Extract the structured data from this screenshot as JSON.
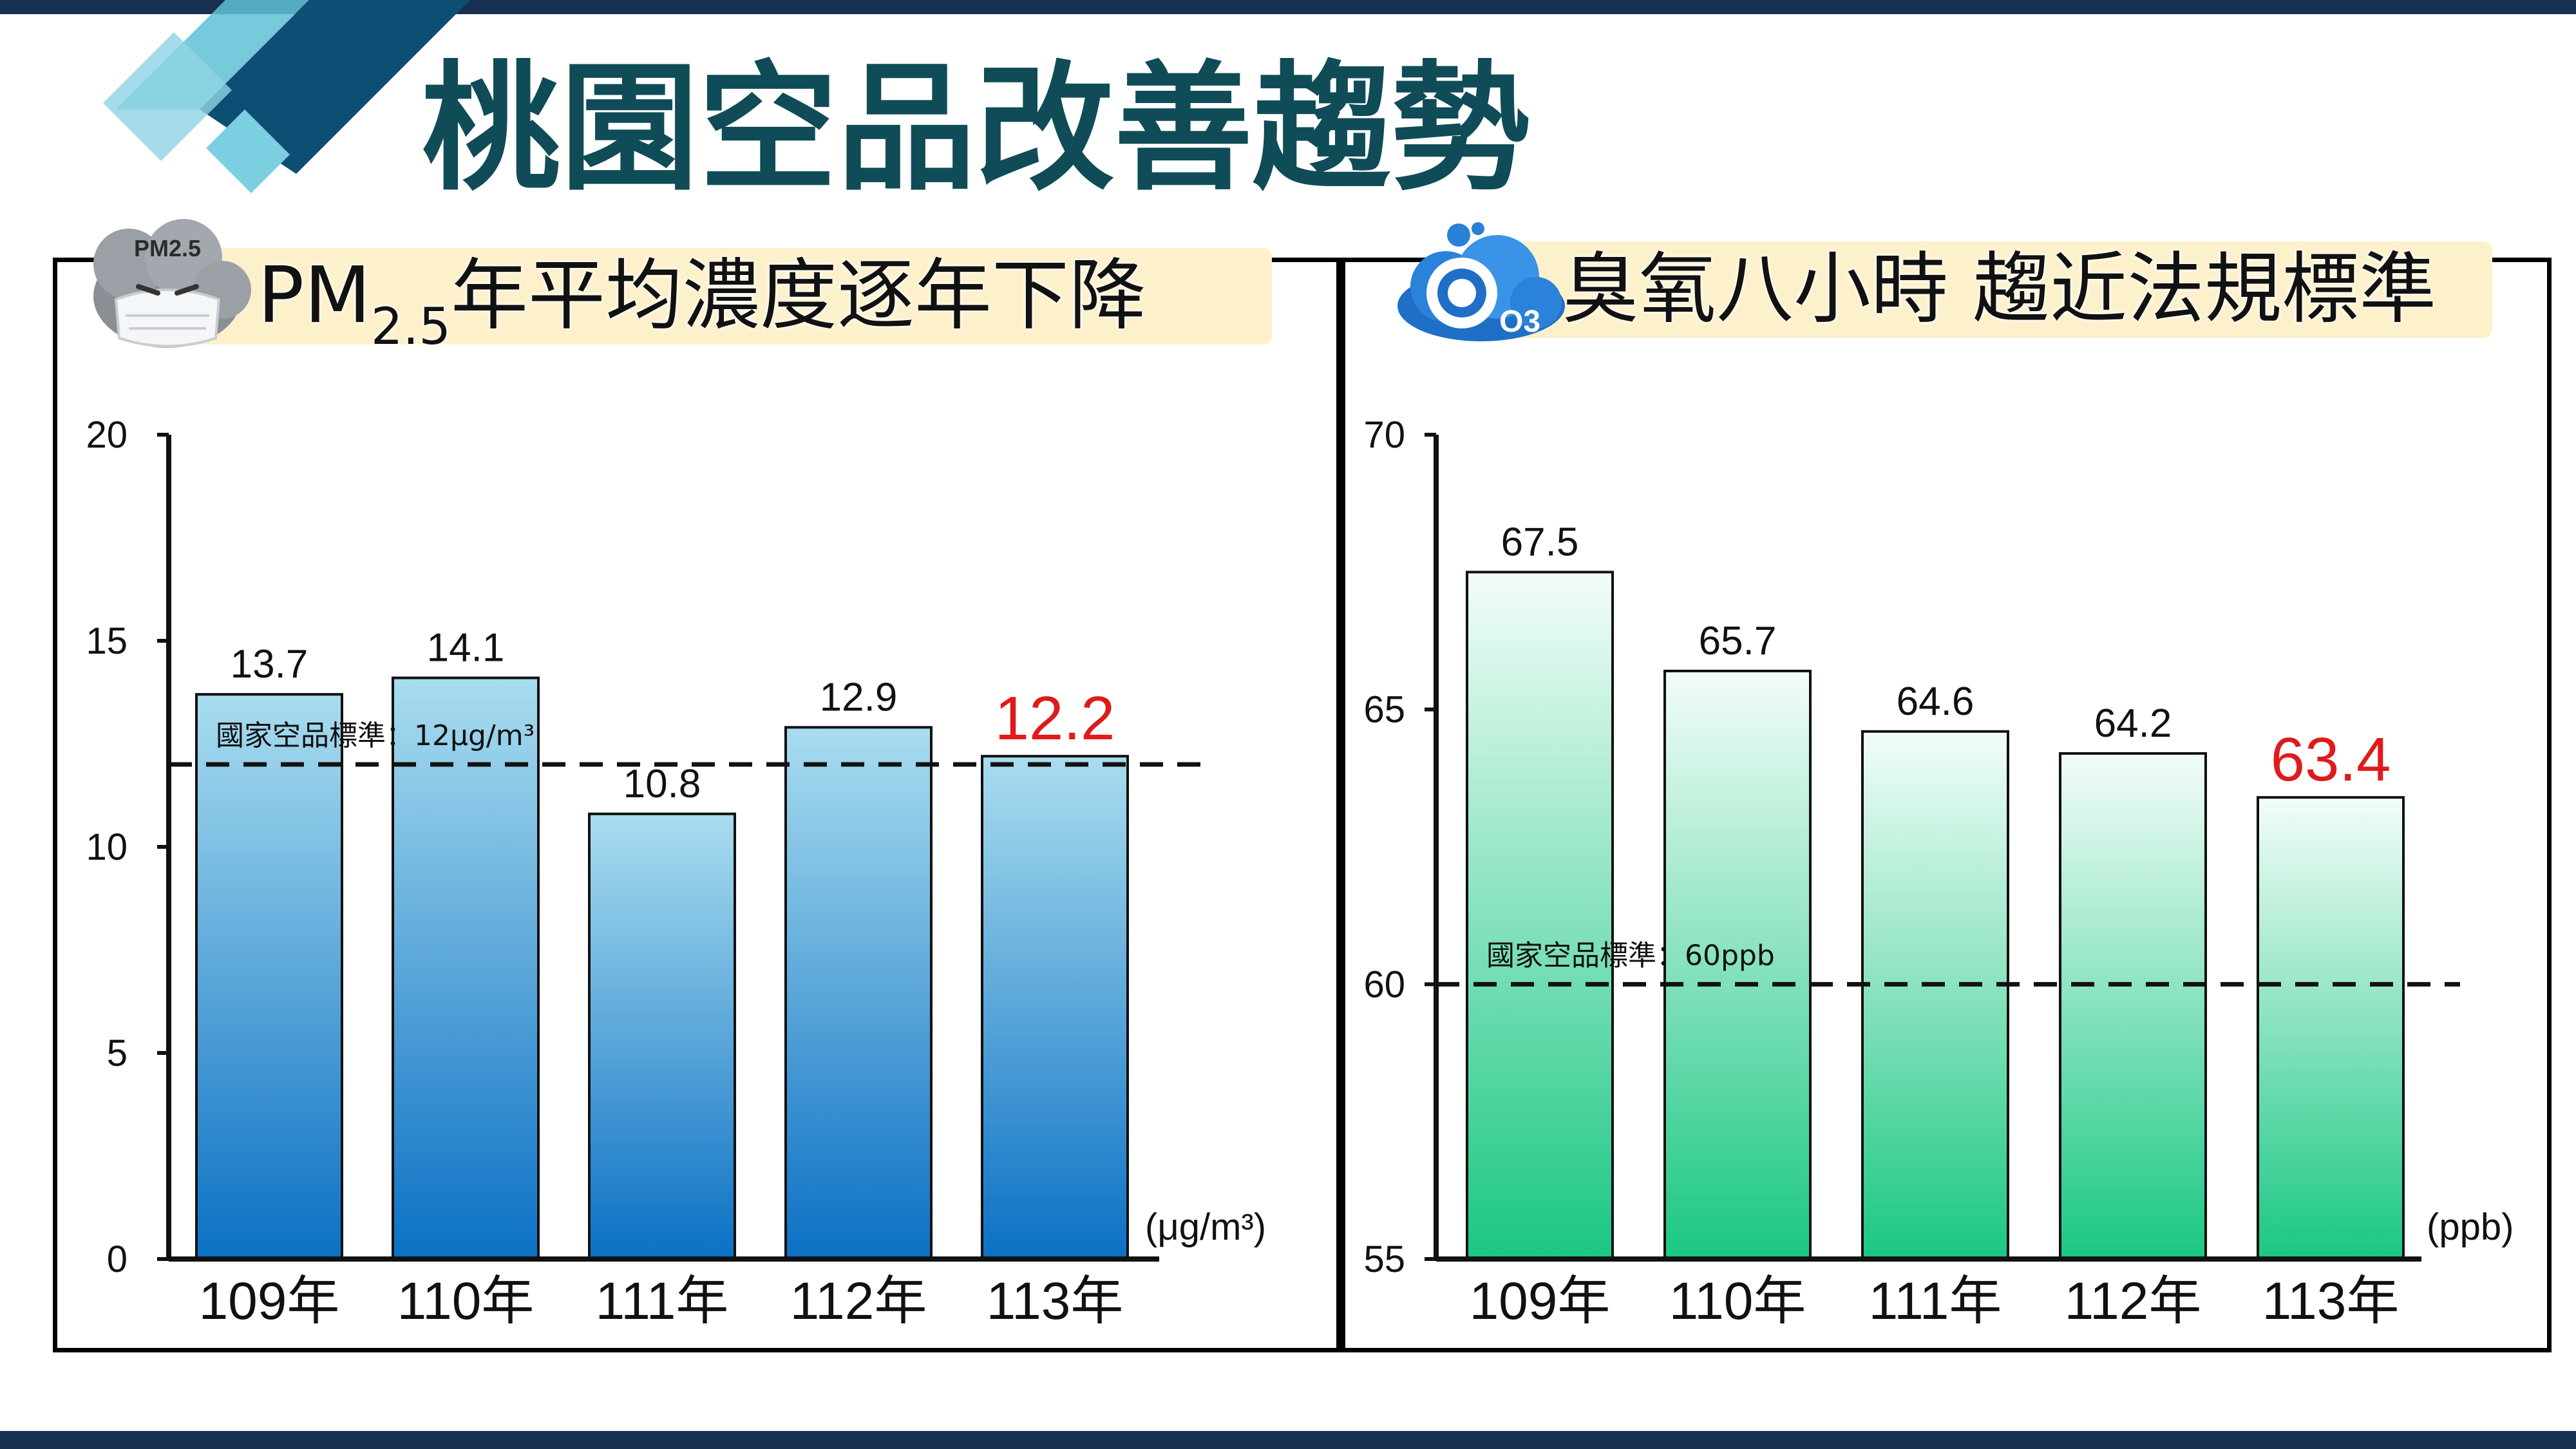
{
  "title": "桃園空品改善趨勢",
  "colors": {
    "header_bar": "#17304f",
    "title": "#0f4c57",
    "highlight": "#e01a1a",
    "banner_bg": "#fdf1cc"
  },
  "icons": {
    "pm_icon": "pm25-mask-cloud-icon",
    "o3_icon": "o3-cloud-icon"
  },
  "pm_icon_text": "PM2.5",
  "o3_icon_text": "O3",
  "chart_data": [
    {
      "type": "bar",
      "heading_main": "PM",
      "heading_sub": "2.5",
      "heading_rest": "年平均濃度逐年下降",
      "categories": [
        "109年",
        "110年",
        "111年",
        "112年",
        "113年"
      ],
      "values": [
        13.7,
        14.1,
        10.8,
        12.9,
        12.2
      ],
      "value_labels": [
        "13.7",
        "14.1",
        "10.8",
        "12.9",
        "12.2"
      ],
      "highlight_index": 4,
      "ylim": [
        0,
        20
      ],
      "yticks": [
        0,
        5,
        10,
        15,
        20
      ],
      "unit": "(μg/m³)",
      "reference": {
        "value": 12,
        "label": "國家空品標準：12μg/m³"
      },
      "bar_gradient": [
        "#a9ddef",
        "#0b70c4"
      ]
    },
    {
      "type": "bar",
      "heading": "臭氧八小時 趨近法規標準",
      "categories": [
        "109年",
        "110年",
        "111年",
        "112年",
        "113年"
      ],
      "values": [
        67.5,
        65.7,
        64.6,
        64.2,
        63.4
      ],
      "value_labels": [
        "67.5",
        "65.7",
        "64.6",
        "64.2",
        "63.4"
      ],
      "highlight_index": 4,
      "ylim": [
        55,
        70
      ],
      "yticks": [
        55,
        60,
        65,
        70
      ],
      "unit": "(ppb)",
      "reference": {
        "value": 60,
        "label": "國家空品標準：60ppb"
      },
      "bar_gradient": [
        "#f3fdf8",
        "#1ac783"
      ]
    }
  ]
}
